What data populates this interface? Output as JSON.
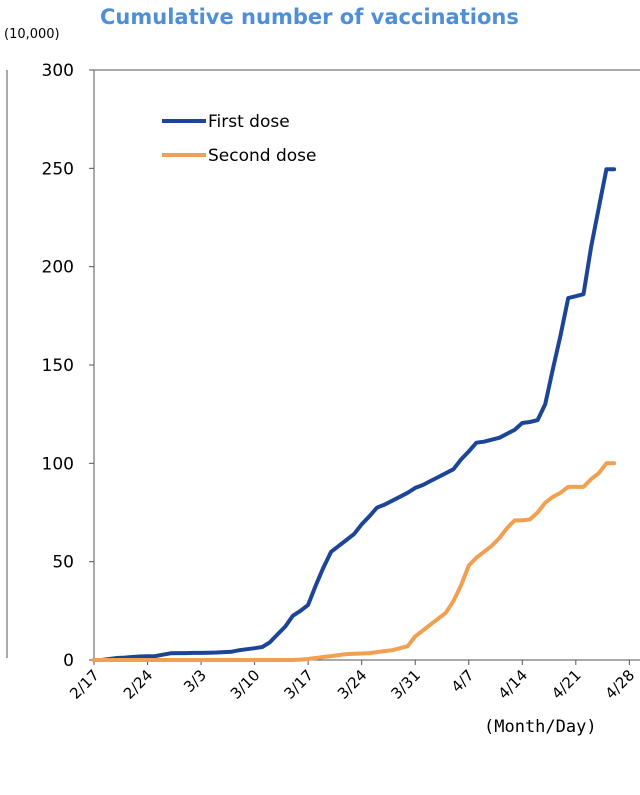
{
  "chart_data": {
    "type": "line",
    "title": "Cumulative number of vaccinations",
    "yunit": "(10,000)",
    "xlabel": "(Month/Day)",
    "ylim": [
      0,
      300
    ],
    "yticks": [
      0,
      50,
      100,
      150,
      200,
      250,
      300
    ],
    "xticks": [
      "2/17",
      "2/24",
      "3/3",
      "3/10",
      "3/17",
      "3/24",
      "3/31",
      "4/7",
      "4/14",
      "4/21",
      "4/28"
    ],
    "x_start": "2/17",
    "x_end": "4/29",
    "grid": false,
    "legend_position": "top-left",
    "series": [
      {
        "name": "First dose",
        "color": "#1c4597",
        "values": [
          0,
          0,
          0.5,
          1,
          1.2,
          1.5,
          1.8,
          1.9,
          2,
          2.7,
          3.4,
          3.5,
          3.5,
          3.6,
          3.6,
          3.7,
          3.8,
          4,
          4.2,
          5,
          5.5,
          6,
          6.6,
          9,
          13,
          17,
          22.5,
          25,
          28,
          38,
          47,
          55,
          58,
          61,
          64,
          69,
          73,
          77.5,
          79,
          81,
          83,
          85,
          87.5,
          89,
          91,
          93,
          95,
          97,
          102,
          106,
          110.5,
          111,
          112,
          113,
          115,
          117,
          120.5,
          121,
          122,
          130,
          148,
          165,
          184,
          185,
          186,
          210,
          230,
          249.5,
          249.5
        ]
      },
      {
        "name": "Second dose",
        "color": "#f0a050",
        "values": [
          0,
          0,
          0,
          0,
          0,
          0,
          0,
          0,
          0,
          0,
          0,
          0,
          0,
          0,
          0,
          0,
          0,
          0,
          0,
          0,
          0,
          0,
          0,
          0,
          0,
          0,
          0,
          0.2,
          0.5,
          1,
          1.5,
          2,
          2.5,
          3,
          3.2,
          3.3,
          3.5,
          4,
          4.5,
          5,
          6,
          7,
          12,
          15,
          18,
          21,
          24,
          30,
          38,
          48,
          52,
          55,
          58,
          62,
          67,
          71,
          71,
          71.5,
          75,
          80,
          83,
          85,
          88,
          88,
          88,
          92,
          95,
          100,
          100
        ]
      }
    ]
  }
}
